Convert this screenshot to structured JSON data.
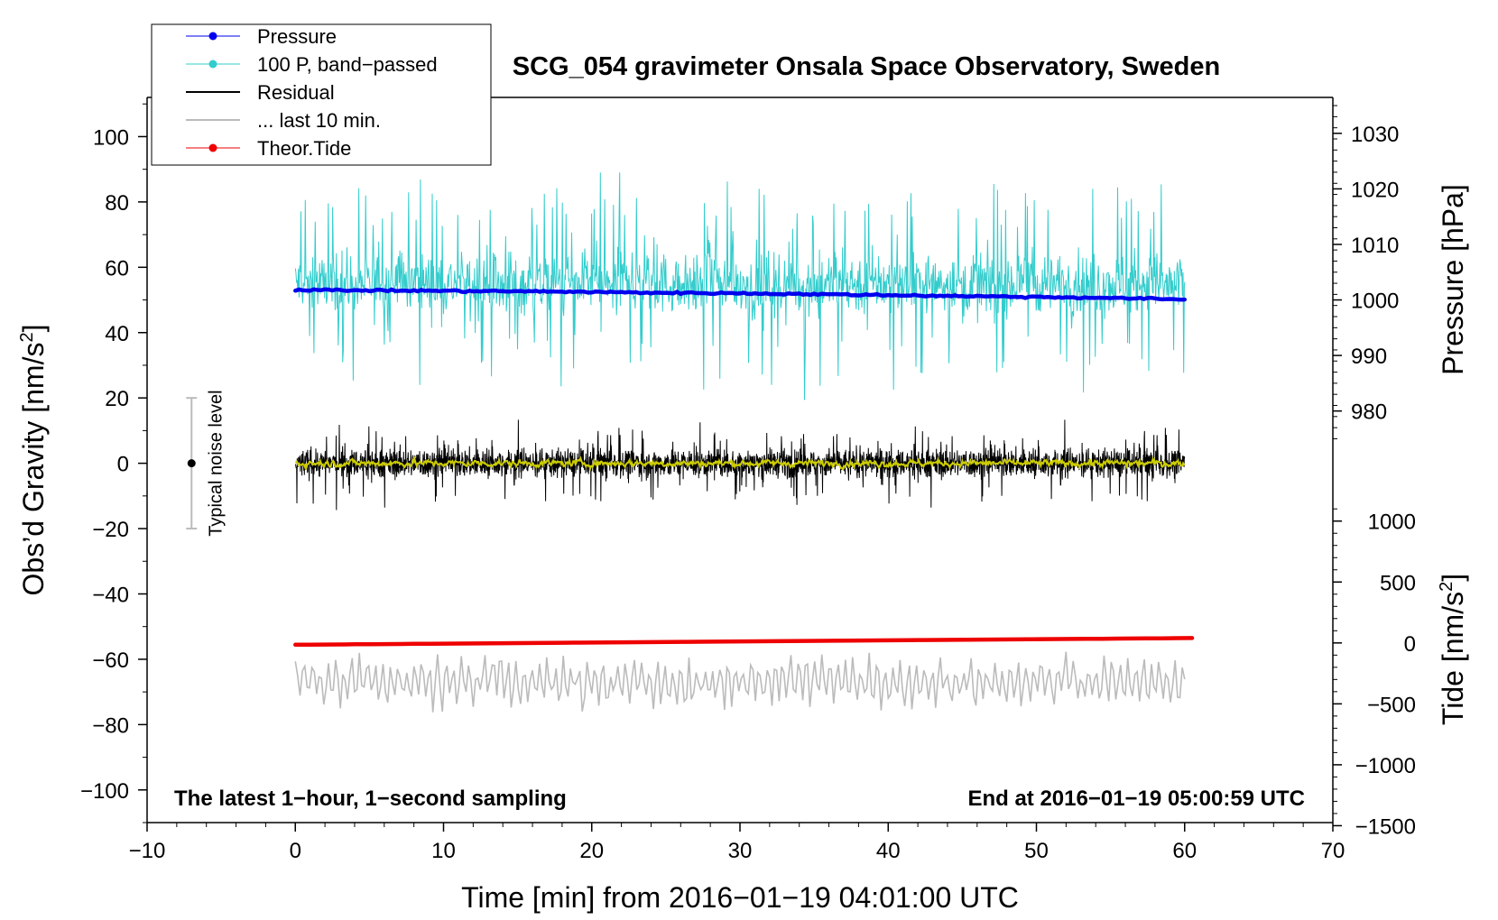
{
  "chart_data": {
    "type": "line",
    "title": "SCG_054 gravimeter Onsala Space Observatory, Sweden",
    "xlabel": "Time [min] from 2016−01−19 04:01:00 UTC",
    "ylabel_left": "Obs’d Gravity [nm/s",
    "ylabel_right_top": "Pressure [hPa]",
    "ylabel_right_bottom": "Tide [nm/s",
    "superscript": "2",
    "closing_bracket": "]",
    "xlim": [
      -10,
      70
    ],
    "ylim_left": [
      -110,
      112
    ],
    "x_ticks": [
      {
        "v": -10,
        "label": "−10"
      },
      {
        "v": 0,
        "label": "0"
      },
      {
        "v": 10,
        "label": "10"
      },
      {
        "v": 20,
        "label": "20"
      },
      {
        "v": 30,
        "label": "30"
      },
      {
        "v": 40,
        "label": "40"
      },
      {
        "v": 50,
        "label": "50"
      },
      {
        "v": 60,
        "label": "60"
      },
      {
        "v": 70,
        "label": "70"
      }
    ],
    "y_left_ticks": [
      {
        "v": 100,
        "label": "100"
      },
      {
        "v": 80,
        "label": "80"
      },
      {
        "v": 60,
        "label": "60"
      },
      {
        "v": 40,
        "label": "40"
      },
      {
        "v": 20,
        "label": "20"
      },
      {
        "v": 0,
        "label": "0"
      },
      {
        "v": -20,
        "label": "−20"
      },
      {
        "v": -40,
        "label": "−40"
      },
      {
        "v": -60,
        "label": "−60"
      },
      {
        "v": -80,
        "label": "−80"
      },
      {
        "v": -100,
        "label": "−100"
      }
    ],
    "pressure_axis": {
      "ticks": [
        {
          "v": 1030,
          "label": "1030"
        },
        {
          "v": 1020,
          "label": "1020"
        },
        {
          "v": 1010,
          "label": "1010"
        },
        {
          "v": 1000,
          "label": "1000"
        },
        {
          "v": 990,
          "label": "990"
        },
        {
          "v": 980,
          "label": "980"
        }
      ],
      "gravity_at_1000": 50,
      "gravity_per_hPa": 1.7
    },
    "tide_axis": {
      "ticks": [
        {
          "v": 1000,
          "label": "1000"
        },
        {
          "v": 500,
          "label": "500"
        },
        {
          "v": 0,
          "label": "0"
        },
        {
          "v": -500,
          "label": "−500"
        },
        {
          "v": -1000,
          "label": "−1000"
        },
        {
          "v": -1500,
          "label": "−1500"
        }
      ],
      "gravity_at_0": -55,
      "gravity_per_unit": 0.0373
    },
    "legend": {
      "position": "top-left",
      "entries": [
        {
          "label": "Pressure",
          "color": "#0000ee",
          "marker": true
        },
        {
          "label": "100 P, band−passed",
          "color": "#33cccc",
          "marker": true
        },
        {
          "label": "Residual",
          "color": "#000000",
          "marker": false
        },
        {
          "label": "... last 10 min.",
          "color": "#bbbbbb",
          "marker": false
        },
        {
          "label": "Theor.Tide",
          "color": "#ee0000",
          "marker": true
        }
      ]
    },
    "series": [
      {
        "name": "Pressure",
        "color": "#0000ee",
        "unit": "hPa",
        "x_range": [
          0,
          60
        ],
        "start": 1001.8,
        "end": 1000.1,
        "points_hPa": [
          1001.8,
          1001.7,
          1001.6,
          1001.5,
          1001.3,
          1001.2,
          1001.0,
          1000.8,
          1000.6,
          1000.4,
          1000.1
        ]
      },
      {
        "name": "100 P, band−passed",
        "color": "#33cccc",
        "unit": "nm/s2",
        "x_range": [
          0,
          60
        ],
        "center": 55,
        "typical_amplitude": 12,
        "max": 89,
        "min": 15
      },
      {
        "name": "Residual",
        "color": "#000000",
        "unit": "nm/s2",
        "x_range": [
          0,
          60
        ],
        "center": 0,
        "typical_amplitude": 5.5,
        "max": 16,
        "min": -18
      },
      {
        "name": "Residual smoothed",
        "color": "#cccc00",
        "unit": "nm/s2",
        "x_range": [
          0,
          60
        ],
        "center": 0,
        "typical_amplitude": 1.2
      },
      {
        "name": "... last 10 min.",
        "color": "#bbbbbb",
        "unit": "nm/s2",
        "x_range": [
          0,
          60
        ],
        "center": -67,
        "typical_amplitude": 7,
        "max": -55,
        "min": -85
      },
      {
        "name": "Theor.Tide",
        "color": "#ee0000",
        "unit": "nm/s2",
        "x_range": [
          0,
          60.5
        ],
        "start": -15,
        "end": 40
      }
    ],
    "noise_level": {
      "label": "Typical noise level",
      "x": -7,
      "center": 0,
      "low": -20,
      "high": 20
    },
    "annotations": {
      "bottom_left": "The latest 1−hour, 1−second sampling",
      "bottom_right": "End at 2016−01−19 05:00:59 UTC"
    }
  }
}
